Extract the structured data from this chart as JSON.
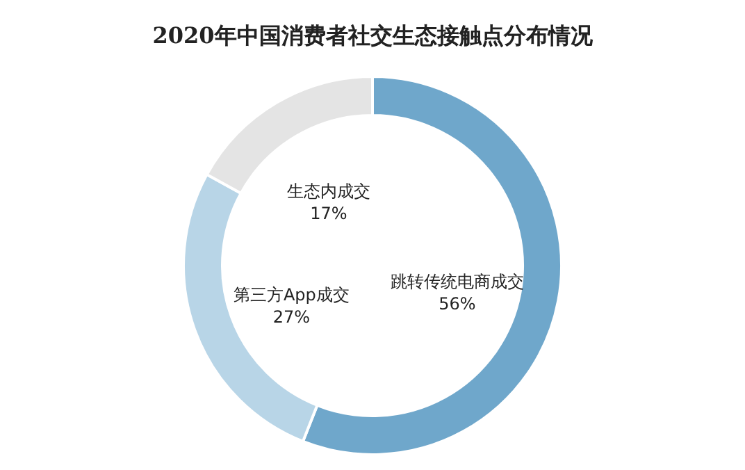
{
  "chart_data": {
    "type": "donut",
    "title": "2020年中国消费者社交生态接触点分布情况",
    "categories": [
      "跳转传统电商成交",
      "第三方App成交",
      "生态内成交"
    ],
    "values": [
      56,
      27,
      17
    ],
    "colors": [
      "#6fa7cb",
      "#b8d5e7",
      "#e4e4e4"
    ],
    "value_labels": [
      "56%",
      "27%",
      "17%"
    ]
  }
}
